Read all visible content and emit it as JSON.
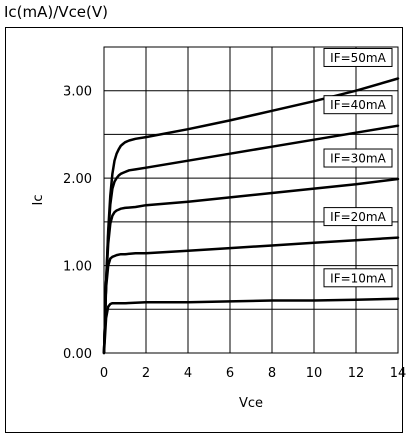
{
  "chart_data": {
    "type": "line",
    "title": "Ic(mA)/Vce(V)",
    "xlabel": "Vce",
    "ylabel": "Ic",
    "xlim": [
      0,
      14
    ],
    "ylim": [
      0,
      3.5
    ],
    "xticks": [
      0,
      2,
      4,
      6,
      8,
      10,
      12,
      14
    ],
    "xtick_labels": [
      "0",
      "2",
      "4",
      "6",
      "8",
      "10",
      "12",
      "14"
    ],
    "yticks": [
      0,
      1,
      2,
      3
    ],
    "ytick_labels": [
      "0.00",
      "1.00",
      "2.00",
      "3.00"
    ],
    "grid": true,
    "series": [
      {
        "name": "IF=50mA",
        "x": [
          0,
          0.1,
          0.2,
          0.3,
          0.4,
          0.5,
          0.6,
          0.7,
          0.8,
          0.9,
          1.0,
          1.2,
          1.5,
          2,
          4,
          6,
          8,
          10,
          12,
          14
        ],
        "y": [
          0,
          0.8,
          1.4,
          1.8,
          2.05,
          2.2,
          2.28,
          2.33,
          2.37,
          2.39,
          2.41,
          2.43,
          2.45,
          2.47,
          2.56,
          2.66,
          2.77,
          2.88,
          3.0,
          3.14
        ]
      },
      {
        "name": "IF=40mA",
        "x": [
          0,
          0.1,
          0.2,
          0.3,
          0.4,
          0.5,
          0.6,
          0.7,
          0.8,
          0.9,
          1.0,
          1.2,
          1.5,
          2,
          4,
          6,
          8,
          10,
          12,
          14
        ],
        "y": [
          0,
          0.8,
          1.35,
          1.7,
          1.88,
          1.96,
          2.0,
          2.03,
          2.05,
          2.06,
          2.07,
          2.09,
          2.1,
          2.12,
          2.2,
          2.28,
          2.36,
          2.44,
          2.52,
          2.6
        ]
      },
      {
        "name": "IF=30mA",
        "x": [
          0,
          0.1,
          0.2,
          0.3,
          0.4,
          0.5,
          0.6,
          0.7,
          0.8,
          1.0,
          1.5,
          2,
          4,
          6,
          8,
          10,
          12,
          14
        ],
        "y": [
          0,
          0.8,
          1.25,
          1.48,
          1.57,
          1.61,
          1.63,
          1.64,
          1.65,
          1.66,
          1.67,
          1.69,
          1.73,
          1.78,
          1.83,
          1.88,
          1.93,
          1.99
        ]
      },
      {
        "name": "IF=20mA",
        "x": [
          0,
          0.1,
          0.2,
          0.3,
          0.4,
          0.5,
          0.6,
          0.8,
          1.0,
          1.5,
          2,
          4,
          6,
          8,
          10,
          12,
          14
        ],
        "y": [
          0,
          0.75,
          1.0,
          1.08,
          1.1,
          1.11,
          1.12,
          1.13,
          1.13,
          1.14,
          1.14,
          1.17,
          1.2,
          1.23,
          1.26,
          1.29,
          1.32
        ]
      },
      {
        "name": "IF=10mA",
        "x": [
          0,
          0.1,
          0.2,
          0.3,
          0.4,
          0.5,
          0.7,
          1.0,
          2,
          4,
          6,
          8,
          10,
          12,
          14
        ],
        "y": [
          0,
          0.4,
          0.53,
          0.56,
          0.57,
          0.57,
          0.57,
          0.57,
          0.58,
          0.58,
          0.59,
          0.6,
          0.6,
          0.61,
          0.62
        ]
      }
    ],
    "legend_labels": [
      {
        "text": "IF=50mA",
        "series": 0
      },
      {
        "text": "IF=40mA",
        "series": 1
      },
      {
        "text": "IF=30mA",
        "series": 2
      },
      {
        "text": "IF=20mA",
        "series": 3
      },
      {
        "text": "IF=10mA",
        "series": 4
      }
    ],
    "line_color": "#000000",
    "grid_color": "#000000"
  }
}
